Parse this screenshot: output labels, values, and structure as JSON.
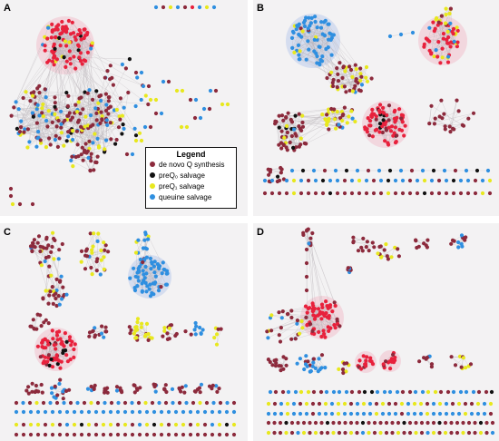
{
  "panels": {
    "a": "A",
    "b": "B",
    "c": "C",
    "d": "D"
  },
  "legend": {
    "title": "Legend",
    "items": [
      {
        "label": "de novo Q synthesis",
        "color": "#8c2a3c"
      },
      {
        "label": "preQ₀ salvage",
        "color": "#111111"
      },
      {
        "label": "preQ₁ salvage",
        "color": "#e8e81e"
      },
      {
        "label": "queuine salvage",
        "color": "#2f8fe0"
      }
    ]
  },
  "colors": {
    "denovo": "#8c2a3c",
    "preq0": "#111111",
    "preq1": "#e8e81e",
    "queuine": "#2f8fe0",
    "red": "#e8213c",
    "edge": "#b9b3b8"
  }
}
